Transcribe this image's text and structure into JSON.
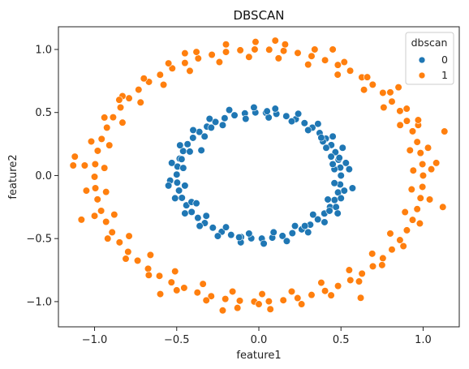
{
  "chart_data": {
    "type": "scatter",
    "title": "DBSCAN",
    "xlabel": "feature1",
    "ylabel": "feature2",
    "xlim": [
      -1.22,
      1.22
    ],
    "ylim": [
      -1.2,
      1.18
    ],
    "xticks": [
      -1.0,
      -0.5,
      0.0,
      0.5,
      1.0
    ],
    "yticks": [
      -1.0,
      -0.5,
      0.0,
      0.5,
      1.0
    ],
    "xtick_labels": [
      "−1.0",
      "−0.5",
      "0.0",
      "0.5",
      "1.0"
    ],
    "ytick_labels": [
      "−1.0",
      "−0.5",
      "0.0",
      "0.5",
      "1.0"
    ],
    "grid": false,
    "legend": {
      "title": "dbscan",
      "placement": "top-right"
    },
    "series": [
      {
        "name": "0",
        "color": "#1f77b4",
        "points": [
          [
            0.5,
            0.0
          ],
          [
            0.496,
            0.063
          ],
          [
            0.485,
            0.125
          ],
          [
            0.466,
            0.185
          ],
          [
            0.441,
            0.242
          ],
          [
            0.408,
            0.293
          ],
          [
            0.37,
            0.337
          ],
          [
            0.326,
            0.38
          ],
          [
            0.278,
            0.416
          ],
          [
            0.225,
            0.447
          ],
          [
            0.167,
            0.471
          ],
          [
            0.107,
            0.489
          ],
          [
            0.043,
            0.498
          ],
          [
            -0.021,
            0.5
          ],
          [
            -0.085,
            0.493
          ],
          [
            -0.148,
            0.478
          ],
          [
            -0.208,
            0.455
          ],
          [
            -0.264,
            0.425
          ],
          [
            -0.316,
            0.388
          ],
          [
            -0.362,
            0.346
          ],
          [
            -0.401,
            0.299
          ],
          [
            -0.434,
            0.249
          ],
          [
            -0.461,
            0.194
          ],
          [
            -0.482,
            0.134
          ],
          [
            -0.495,
            0.071
          ],
          [
            -0.5,
            0.008
          ],
          [
            -0.497,
            -0.056
          ],
          [
            -0.486,
            -0.119
          ],
          [
            -0.468,
            -0.177
          ],
          [
            -0.441,
            -0.236
          ],
          [
            -0.409,
            -0.289
          ],
          [
            -0.371,
            -0.336
          ],
          [
            -0.329,
            -0.377
          ],
          [
            -0.28,
            -0.414
          ],
          [
            -0.226,
            -0.446
          ],
          [
            -0.169,
            -0.471
          ],
          [
            -0.108,
            -0.488
          ],
          [
            -0.046,
            -0.498
          ],
          [
            0.018,
            -0.5
          ],
          [
            0.082,
            -0.493
          ],
          [
            0.144,
            -0.479
          ],
          [
            0.204,
            -0.457
          ],
          [
            0.261,
            -0.427
          ],
          [
            0.313,
            -0.39
          ],
          [
            0.359,
            -0.348
          ],
          [
            0.399,
            -0.301
          ],
          [
            0.433,
            -0.25
          ],
          [
            0.461,
            -0.194
          ],
          [
            0.482,
            -0.134
          ],
          [
            0.495,
            -0.071
          ],
          [
            0.46,
            0.05
          ],
          [
            0.44,
            0.15
          ],
          [
            0.39,
            0.27
          ],
          [
            0.3,
            0.36
          ],
          [
            0.2,
            0.43
          ],
          [
            0.06,
            0.46
          ],
          [
            -0.08,
            0.45
          ],
          [
            -0.22,
            0.4
          ],
          [
            -0.33,
            0.31
          ],
          [
            -0.42,
            0.19
          ],
          [
            -0.46,
            0.06
          ],
          [
            -0.45,
            -0.08
          ],
          [
            -0.41,
            -0.21
          ],
          [
            -0.32,
            -0.32
          ],
          [
            -0.2,
            -0.41
          ],
          [
            -0.06,
            -0.46
          ],
          [
            0.09,
            -0.45
          ],
          [
            0.22,
            -0.4
          ],
          [
            0.33,
            -0.31
          ],
          [
            0.42,
            -0.19
          ],
          [
            0.46,
            -0.06
          ],
          [
            0.53,
            0.1
          ],
          [
            0.51,
            0.22
          ],
          [
            0.45,
            0.31
          ],
          [
            0.36,
            0.41
          ],
          [
            0.24,
            0.49
          ],
          [
            0.1,
            0.53
          ],
          [
            -0.03,
            0.54
          ],
          [
            -0.18,
            0.52
          ],
          [
            -0.3,
            0.45
          ],
          [
            -0.4,
            0.36
          ],
          [
            -0.48,
            0.24
          ],
          [
            -0.53,
            0.1
          ],
          [
            -0.54,
            -0.04
          ],
          [
            -0.51,
            -0.18
          ],
          [
            -0.45,
            -0.3
          ],
          [
            -0.36,
            -0.4
          ],
          [
            -0.25,
            -0.48
          ],
          [
            -0.11,
            -0.53
          ],
          [
            0.03,
            -0.54
          ],
          [
            0.17,
            -0.52
          ],
          [
            0.3,
            -0.45
          ],
          [
            0.4,
            -0.37
          ],
          [
            0.47,
            -0.25
          ],
          [
            0.52,
            -0.12
          ],
          [
            0.5,
            -0.18
          ],
          [
            0.38,
            0.3
          ],
          [
            -0.35,
            0.2
          ],
          [
            -0.55,
            -0.08
          ],
          [
            0.48,
            -0.3
          ],
          [
            -0.38,
            -0.22
          ],
          [
            0.28,
            -0.4
          ],
          [
            0.41,
            0.22
          ],
          [
            0.05,
            0.51
          ],
          [
            -0.12,
            -0.49
          ],
          [
            0.55,
            0.05
          ],
          [
            0.49,
            0.14
          ],
          [
            0.43,
            -0.28
          ],
          [
            -0.29,
            0.38
          ],
          [
            0.57,
            -0.1
          ],
          [
            0.45,
            0.09
          ],
          [
            -0.47,
            0.13
          ]
        ]
      },
      {
        "name": "1",
        "color": "#ff7f0e",
        "points": [
          [
            1.0,
            0.0
          ],
          [
            0.996,
            0.09
          ],
          [
            0.984,
            0.179
          ],
          [
            0.964,
            0.266
          ],
          [
            0.936,
            0.351
          ],
          [
            0.901,
            0.433
          ],
          [
            0.859,
            0.512
          ],
          [
            0.81,
            0.587
          ],
          [
            0.755,
            0.656
          ],
          [
            0.693,
            0.721
          ],
          [
            0.627,
            0.779
          ],
          [
            0.556,
            0.831
          ],
          [
            0.481,
            0.877
          ],
          [
            0.403,
            0.915
          ],
          [
            0.321,
            0.947
          ],
          [
            0.237,
            0.972
          ],
          [
            0.151,
            0.989
          ],
          [
            0.063,
            0.998
          ],
          [
            -0.025,
            1.0
          ],
          [
            -0.113,
            0.994
          ],
          [
            -0.2,
            0.98
          ],
          [
            -0.286,
            0.958
          ],
          [
            -0.369,
            0.929
          ],
          [
            -0.45,
            0.893
          ],
          [
            -0.527,
            0.85
          ],
          [
            -0.601,
            0.799
          ],
          [
            -0.669,
            0.743
          ],
          [
            -0.732,
            0.681
          ],
          [
            -0.79,
            0.613
          ],
          [
            -0.842,
            0.54
          ],
          [
            -0.887,
            0.462
          ],
          [
            -0.925,
            0.38
          ],
          [
            -0.957,
            0.29
          ],
          [
            -0.981,
            0.196
          ],
          [
            -0.996,
            0.09
          ],
          [
            -1.0,
            -0.01
          ],
          [
            -0.995,
            -0.1
          ],
          [
            -0.982,
            -0.189
          ],
          [
            -0.96,
            -0.28
          ],
          [
            -0.93,
            -0.367
          ],
          [
            -0.893,
            -0.45
          ],
          [
            -0.848,
            -0.53
          ],
          [
            -0.796,
            -0.605
          ],
          [
            -0.738,
            -0.675
          ],
          [
            -0.674,
            -0.739
          ],
          [
            -0.605,
            -0.796
          ],
          [
            -0.532,
            -0.847
          ],
          [
            -0.455,
            -0.891
          ],
          [
            -0.374,
            -0.928
          ],
          [
            -0.29,
            -0.957
          ],
          [
            -0.204,
            -0.979
          ],
          [
            -0.116,
            -0.993
          ],
          [
            -0.028,
            -1.0
          ],
          [
            0.061,
            -0.998
          ],
          [
            0.149,
            -0.989
          ],
          [
            0.236,
            -0.972
          ],
          [
            0.321,
            -0.947
          ],
          [
            0.403,
            -0.915
          ],
          [
            0.482,
            -0.876
          ],
          [
            0.557,
            -0.83
          ],
          [
            0.628,
            -0.778
          ],
          [
            0.694,
            -0.72
          ],
          [
            0.755,
            -0.656
          ],
          [
            0.81,
            -0.587
          ],
          [
            0.859,
            -0.512
          ],
          [
            0.901,
            -0.434
          ],
          [
            0.936,
            -0.352
          ],
          [
            0.964,
            -0.266
          ],
          [
            0.984,
            -0.179
          ],
          [
            0.996,
            -0.09
          ],
          [
            1.05,
            0.05
          ],
          [
            1.03,
            0.22
          ],
          [
            0.97,
            0.4
          ],
          [
            0.9,
            0.53
          ],
          [
            0.8,
            0.66
          ],
          [
            0.66,
            0.78
          ],
          [
            0.52,
            0.9
          ],
          [
            0.34,
            1.0
          ],
          [
            0.16,
            1.04
          ],
          [
            -0.02,
            1.06
          ],
          [
            -0.2,
            1.04
          ],
          [
            -0.38,
            0.98
          ],
          [
            -0.55,
            0.89
          ],
          [
            -0.7,
            0.77
          ],
          [
            -0.83,
            0.63
          ],
          [
            -0.94,
            0.46
          ],
          [
            -1.02,
            0.27
          ],
          [
            -1.06,
            0.08
          ],
          [
            -1.05,
            -0.12
          ],
          [
            -1.0,
            -0.32
          ],
          [
            -0.92,
            -0.5
          ],
          [
            -0.81,
            -0.66
          ],
          [
            -0.67,
            -0.79
          ],
          [
            -0.5,
            -0.91
          ],
          [
            -0.32,
            -0.99
          ],
          [
            -0.13,
            -1.05
          ],
          [
            0.07,
            -1.06
          ],
          [
            0.26,
            -1.02
          ],
          [
            0.44,
            -0.95
          ],
          [
            0.61,
            -0.84
          ],
          [
            0.75,
            -0.71
          ],
          [
            0.88,
            -0.56
          ],
          [
            0.98,
            -0.38
          ],
          [
            1.04,
            -0.19
          ],
          [
            0.94,
            0.04
          ],
          [
            0.92,
            0.2
          ],
          [
            0.86,
            0.4
          ],
          [
            0.76,
            0.54
          ],
          [
            0.64,
            0.68
          ],
          [
            0.48,
            0.8
          ],
          [
            0.3,
            0.88
          ],
          [
            0.12,
            0.93
          ],
          [
            -0.06,
            0.94
          ],
          [
            -0.24,
            0.9
          ],
          [
            -0.42,
            0.83
          ],
          [
            -0.58,
            0.72
          ],
          [
            -0.72,
            0.58
          ],
          [
            -0.83,
            0.42
          ],
          [
            -0.91,
            0.24
          ],
          [
            -0.94,
            0.06
          ],
          [
            -0.93,
            -0.13
          ],
          [
            -0.88,
            -0.31
          ],
          [
            -0.79,
            -0.48
          ],
          [
            -0.66,
            -0.63
          ],
          [
            -0.51,
            -0.76
          ],
          [
            -0.34,
            -0.86
          ],
          [
            -0.16,
            -0.92
          ],
          [
            0.02,
            -0.94
          ],
          [
            0.2,
            -0.92
          ],
          [
            0.38,
            -0.85
          ],
          [
            0.55,
            -0.75
          ],
          [
            0.69,
            -0.62
          ],
          [
            0.8,
            -0.46
          ],
          [
            0.89,
            -0.29
          ],
          [
            0.93,
            -0.11
          ],
          [
            1.13,
            0.35
          ],
          [
            1.12,
            -0.25
          ],
          [
            -1.12,
            0.15
          ],
          [
            -1.13,
            0.08
          ],
          [
            0.97,
            0.44
          ],
          [
            -0.85,
            0.6
          ],
          [
            0.85,
            0.7
          ],
          [
            -0.6,
            -0.94
          ],
          [
            0.62,
            -0.97
          ],
          [
            0.1,
            1.07
          ],
          [
            -0.22,
            -1.07
          ],
          [
            0.0,
            -1.02
          ],
          [
            -0.45,
            0.97
          ],
          [
            0.45,
            1.0
          ],
          [
            -1.08,
            -0.35
          ],
          [
            1.08,
            0.1
          ]
        ]
      }
    ]
  }
}
